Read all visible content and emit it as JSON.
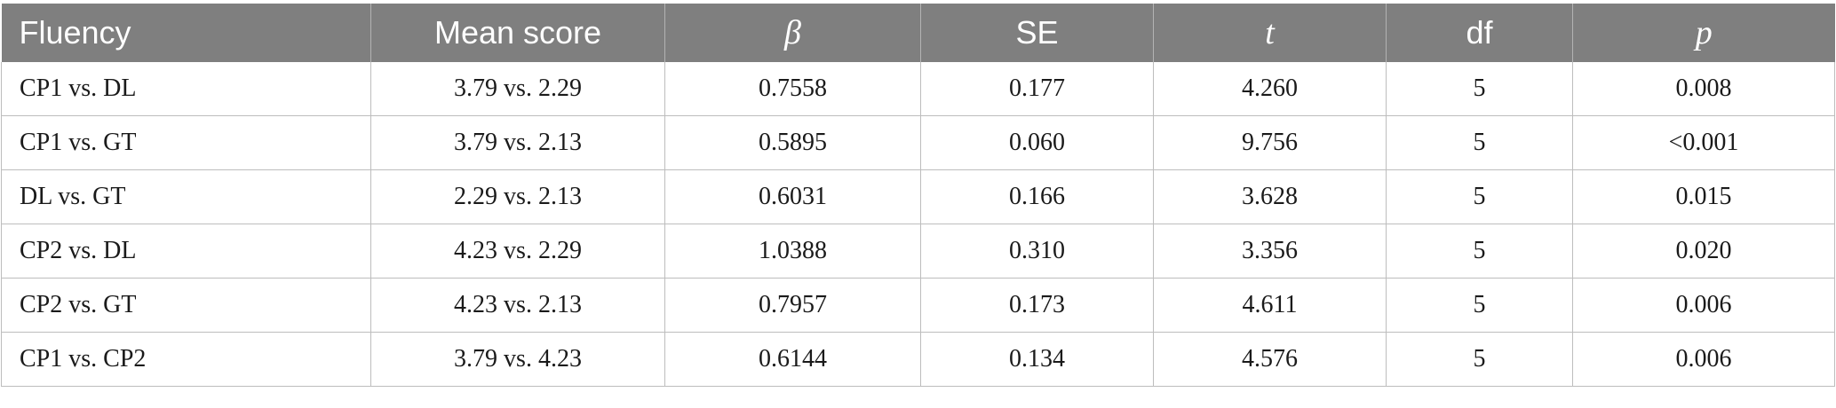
{
  "table": {
    "headers": [
      "Fluency",
      "Mean score",
      "β",
      "SE",
      "t",
      "df",
      "p"
    ],
    "rows": [
      [
        "CP1 vs. DL",
        "3.79 vs. 2.29",
        "0.7558",
        "0.177",
        "4.260",
        "5",
        "0.008"
      ],
      [
        "CP1 vs. GT",
        "3.79 vs. 2.13",
        "0.5895",
        "0.060",
        "9.756",
        "5",
        "<0.001"
      ],
      [
        "DL vs. GT",
        "2.29 vs. 2.13",
        "0.6031",
        "0.166",
        "3.628",
        "5",
        "0.015"
      ],
      [
        "CP2 vs. DL",
        "4.23 vs. 2.29",
        "1.0388",
        "0.310",
        "3.356",
        "5",
        "0.020"
      ],
      [
        "CP2 vs. GT",
        "4.23 vs. 2.13",
        "0.7957",
        "0.173",
        "4.611",
        "5",
        "0.006"
      ],
      [
        "CP1 vs. CP2",
        "3.79 vs. 4.23",
        "0.6144",
        "0.134",
        "4.576",
        "5",
        "0.006"
      ]
    ]
  },
  "colors": {
    "header_bg": "#7f7f7f",
    "header_text": "#ffffff",
    "grid": "#bdbdbd"
  }
}
